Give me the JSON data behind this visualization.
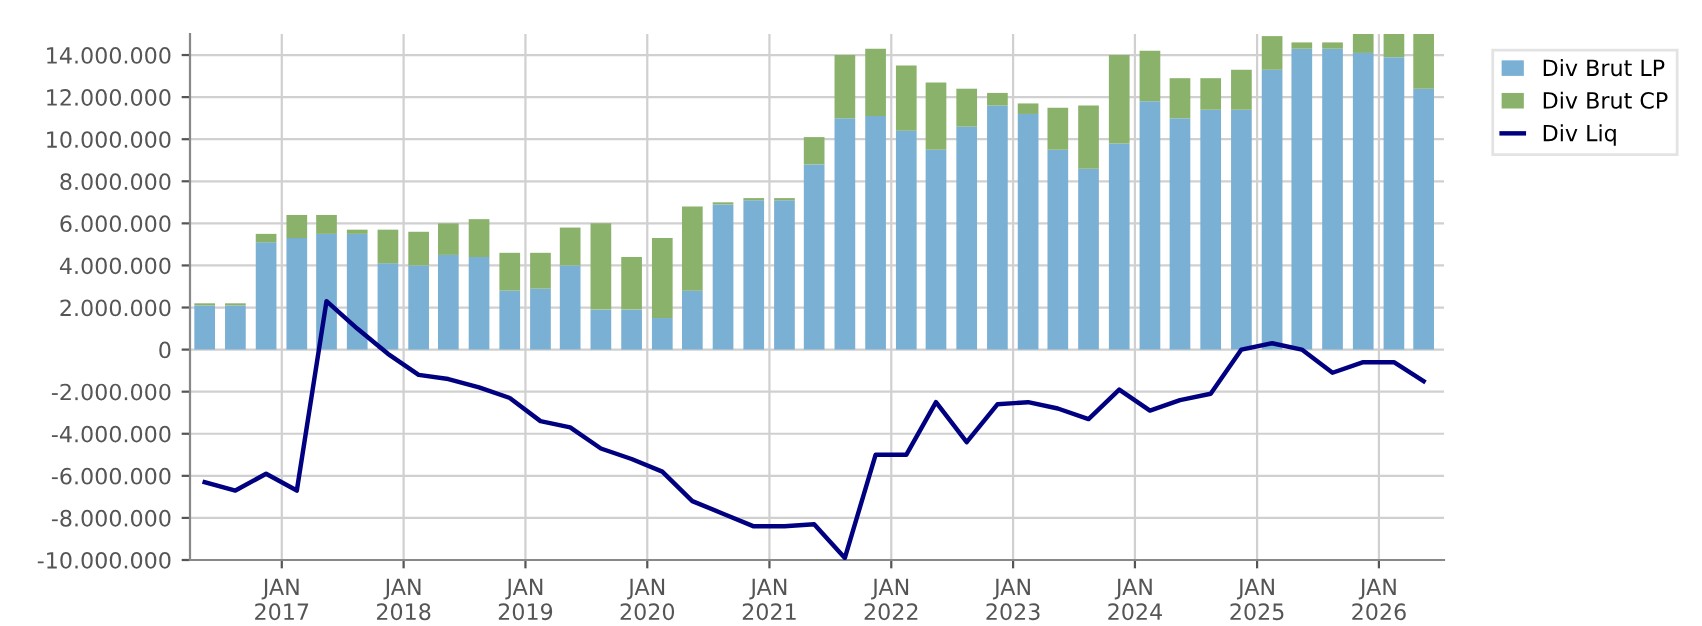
{
  "chart_data": {
    "type": "bar",
    "stacked": true,
    "x": [
      "2016-05-15",
      "2016-08-15",
      "2016-11-15",
      "2017-02-15",
      "2017-05-15",
      "2017-08-15",
      "2017-11-15",
      "2018-02-15",
      "2018-05-15",
      "2018-08-15",
      "2018-11-15",
      "2019-02-15",
      "2019-05-15",
      "2019-08-15",
      "2019-11-15",
      "2020-02-15",
      "2020-05-15",
      "2020-08-15",
      "2020-11-15",
      "2021-02-15",
      "2021-05-15",
      "2021-08-15",
      "2021-11-15",
      "2022-02-15",
      "2022-05-15",
      "2022-08-15",
      "2022-11-15",
      "2023-02-15",
      "2023-05-15",
      "2023-08-15",
      "2023-11-15",
      "2024-02-15",
      "2024-05-15",
      "2024-08-15",
      "2024-11-15",
      "2025-02-15",
      "2025-05-15",
      "2025-08-15",
      "2025-11-15",
      "2026-02-15",
      "2026-05-15"
    ],
    "series": [
      {
        "name": "Div Brut LP",
        "color": "#7ab0d3",
        "values": [
          2100000,
          2100000,
          5100000,
          5300000,
          5500000,
          5500000,
          4100000,
          4000000,
          4500000,
          4400000,
          2800000,
          2900000,
          4000000,
          1900000,
          1900000,
          1500000,
          2800000,
          6900000,
          7100000,
          7100000,
          8800000,
          11000000,
          11100000,
          10400000,
          9500000,
          10600000,
          11600000,
          11200000,
          9500000,
          8600000,
          9800000,
          11800000,
          11000000,
          11400000,
          11400000,
          13300000,
          14300000,
          14300000,
          14100000,
          13900000,
          12400000
        ]
      },
      {
        "name": "Div Brut CP",
        "color": "#8ab26b",
        "values": [
          100000,
          100000,
          400000,
          1100000,
          900000,
          200000,
          1600000,
          1600000,
          1500000,
          1800000,
          1800000,
          1700000,
          1800000,
          4100000,
          2500000,
          3800000,
          4000000,
          100000,
          100000,
          100000,
          1300000,
          3000000,
          3200000,
          3100000,
          3200000,
          1800000,
          600000,
          500000,
          2000000,
          3000000,
          4200000,
          2400000,
          1900000,
          1500000,
          1900000,
          1600000,
          300000,
          300000,
          900000,
          1100000,
          2600000
        ]
      },
      {
        "name": "Div Liq",
        "type": "line",
        "color": "#000080",
        "values": [
          -6300000,
          -6700000,
          -5900000,
          -6700000,
          2300000,
          1000000,
          -200000,
          -1200000,
          -1400000,
          -1800000,
          -2300000,
          -3400000,
          -3700000,
          -4700000,
          -5200000,
          -5800000,
          -7200000,
          -7800000,
          -8400000,
          -8400000,
          -8300000,
          -9900000,
          -5000000,
          -5000000,
          -2500000,
          -4400000,
          -2600000,
          -2500000,
          -2800000,
          -3300000,
          -1900000,
          -2900000,
          -2400000,
          -2100000,
          0,
          300000,
          0,
          -1100000,
          -600000,
          -600000,
          -1500000
        ]
      }
    ],
    "xlim": [
      "2016-04-01",
      "2026-07-15"
    ],
    "xticks": [
      {
        "value": "2017-01-01",
        "label": "JAN\n2017"
      },
      {
        "value": "2018-01-01",
        "label": "JAN\n2018"
      },
      {
        "value": "2019-01-01",
        "label": "JAN\n2019"
      },
      {
        "value": "2020-01-01",
        "label": "JAN\n2020"
      },
      {
        "value": "2021-01-01",
        "label": "JAN\n2021"
      },
      {
        "value": "2022-01-01",
        "label": "JAN\n2022"
      },
      {
        "value": "2023-01-01",
        "label": "JAN\n2023"
      },
      {
        "value": "2024-01-01",
        "label": "JAN\n2024"
      },
      {
        "value": "2025-01-01",
        "label": "JAN\n2025"
      },
      {
        "value": "2026-01-01",
        "label": "JAN\n2026"
      }
    ],
    "ylim": [
      -10000000,
      15000000
    ],
    "yticks": [
      {
        "value": -10000000,
        "label": "-10.000.000"
      },
      {
        "value": -8000000,
        "label": "-8.000.000"
      },
      {
        "value": -6000000,
        "label": "-6.000.000"
      },
      {
        "value": -4000000,
        "label": "-4.000.000"
      },
      {
        "value": -2000000,
        "label": "-2.000.000"
      },
      {
        "value": 0,
        "label": "0"
      },
      {
        "value": 2000000,
        "label": "2.000.000"
      },
      {
        "value": 4000000,
        "label": "4.000.000"
      },
      {
        "value": 6000000,
        "label": "6.000.000"
      },
      {
        "value": 8000000,
        "label": "8.000.000"
      },
      {
        "value": 10000000,
        "label": "10.000.000"
      },
      {
        "value": 12000000,
        "label": "12.000.000"
      },
      {
        "value": 14000000,
        "label": "14.000.000"
      }
    ],
    "grid": true,
    "legend": "right",
    "marker": "none",
    "line_style": "solid"
  }
}
